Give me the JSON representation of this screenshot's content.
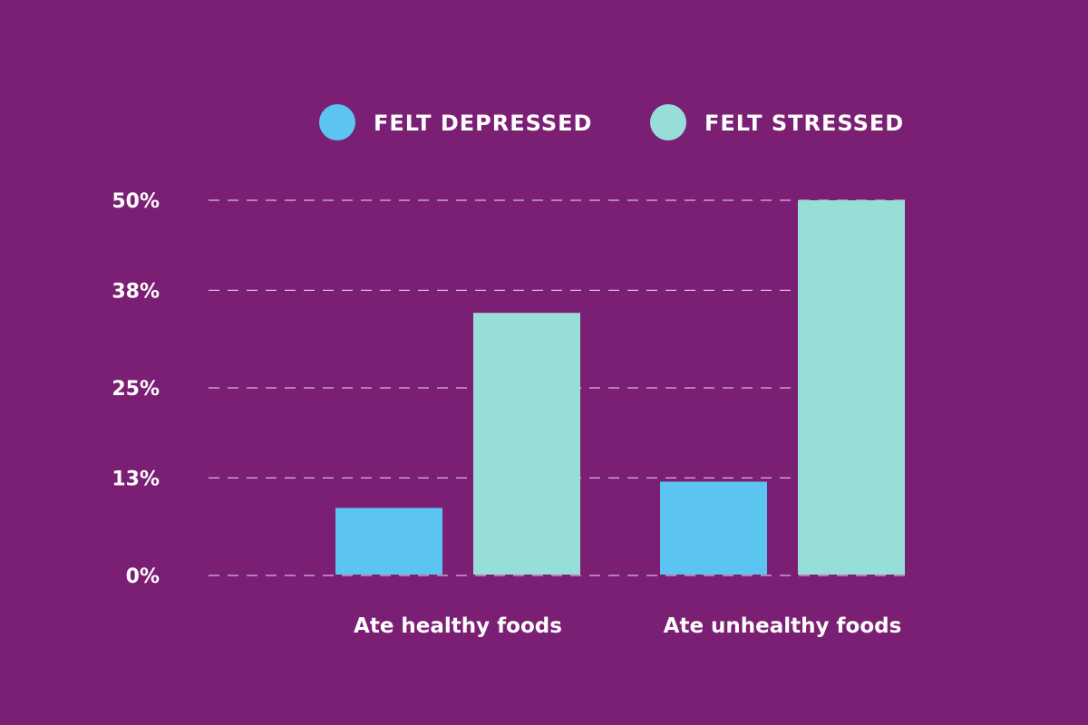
{
  "chart_data": {
    "type": "bar",
    "categories": [
      "Ate healthy foods",
      "Ate unhealthy foods"
    ],
    "series": [
      {
        "name": "FELT DEPRESSED",
        "color": "#5BC4F1",
        "values": [
          9,
          12.5
        ]
      },
      {
        "name": "FELT STRESSED",
        "color": "#98DED8",
        "values": [
          35,
          50
        ]
      }
    ],
    "yticks": [
      {
        "value": 0,
        "label": "0%"
      },
      {
        "value": 13,
        "label": "13%"
      },
      {
        "value": 25,
        "label": "25%"
      },
      {
        "value": 38,
        "label": "38%"
      },
      {
        "value": 50,
        "label": "50%"
      }
    ],
    "ylim": [
      0,
      50
    ],
    "grid": true,
    "grid_style": "dashed",
    "legend_position": "top",
    "background": "#7B1F74"
  }
}
